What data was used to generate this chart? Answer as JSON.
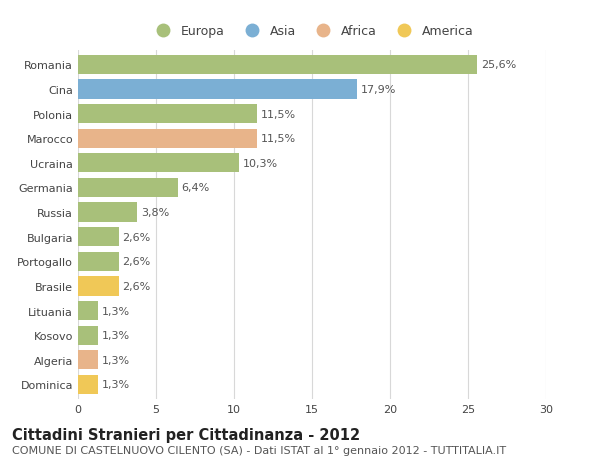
{
  "countries": [
    "Romania",
    "Cina",
    "Polonia",
    "Marocco",
    "Ucraina",
    "Germania",
    "Russia",
    "Bulgaria",
    "Portogallo",
    "Brasile",
    "Lituania",
    "Kosovo",
    "Algeria",
    "Dominica"
  ],
  "values": [
    25.6,
    17.9,
    11.5,
    11.5,
    10.3,
    6.4,
    3.8,
    2.6,
    2.6,
    2.6,
    1.3,
    1.3,
    1.3,
    1.3
  ],
  "labels": [
    "25,6%",
    "17,9%",
    "11,5%",
    "11,5%",
    "10,3%",
    "6,4%",
    "3,8%",
    "2,6%",
    "2,6%",
    "2,6%",
    "1,3%",
    "1,3%",
    "1,3%",
    "1,3%"
  ],
  "colors": [
    "#a8c07a",
    "#7bafd4",
    "#a8c07a",
    "#e8b48a",
    "#a8c07a",
    "#a8c07a",
    "#a8c07a",
    "#a8c07a",
    "#a8c07a",
    "#f0c857",
    "#a8c07a",
    "#a8c07a",
    "#e8b48a",
    "#f0c857"
  ],
  "continent_colors": {
    "Europa": "#a8c07a",
    "Asia": "#7bafd4",
    "Africa": "#e8b48a",
    "America": "#f0c857"
  },
  "xlim": [
    0,
    30
  ],
  "xticks": [
    0,
    5,
    10,
    15,
    20,
    25,
    30
  ],
  "title": "Cittadini Stranieri per Cittadinanza - 2012",
  "subtitle": "COMUNE DI CASTELNUOVO CILENTO (SA) - Dati ISTAT al 1° gennaio 2012 - TUTTITALIA.IT",
  "background_color": "#ffffff",
  "grid_color": "#d8d8d8",
  "bar_height": 0.78,
  "title_fontsize": 10.5,
  "subtitle_fontsize": 8,
  "tick_fontsize": 8,
  "value_fontsize": 8,
  "legend_fontsize": 9
}
